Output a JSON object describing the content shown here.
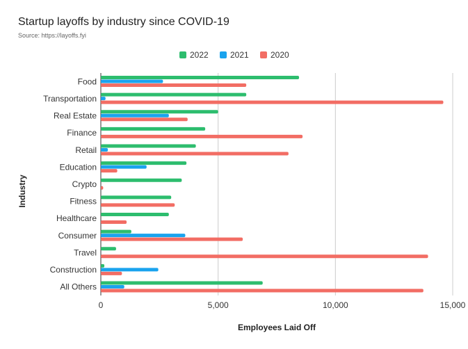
{
  "header": {
    "title": "Startup layoffs by industry since COVID-19",
    "subtitle": "Source: https://layoffs.fyi"
  },
  "chart_data": {
    "type": "bar",
    "orientation": "horizontal",
    "title": "Startup layoffs by industry since COVID-19",
    "subtitle": "Source: https://layoffs.fyi",
    "xlabel": "Employees Laid Off",
    "ylabel": "Industry",
    "xlim": [
      0,
      15000
    ],
    "x_ticks": [
      0,
      5000,
      10000,
      15000
    ],
    "x_tick_labels": [
      "0",
      "5,000",
      "10,000",
      "15,000"
    ],
    "grid": true,
    "legend_position": "top",
    "categories": [
      "Food",
      "Transportation",
      "Real Estate",
      "Finance",
      "Retail",
      "Education",
      "Crypto",
      "Fitness",
      "Healthcare",
      "Consumer",
      "Travel",
      "Construction",
      "All Others"
    ],
    "series": [
      {
        "name": "2022",
        "color": "#2dbd6e",
        "values": [
          8450,
          6200,
          5000,
          4450,
          4050,
          3650,
          3450,
          3000,
          2900,
          1300,
          650,
          150,
          6900
        ]
      },
      {
        "name": "2021",
        "color": "#1aa3ee",
        "values": [
          2650,
          200,
          2900,
          0,
          300,
          1950,
          0,
          0,
          0,
          3600,
          0,
          2450,
          1000
        ]
      },
      {
        "name": "2020",
        "color": "#f26d64",
        "values": [
          6200,
          14600,
          3700,
          8600,
          8000,
          700,
          100,
          3150,
          1100,
          6050,
          13950,
          900,
          13750
        ]
      }
    ]
  }
}
